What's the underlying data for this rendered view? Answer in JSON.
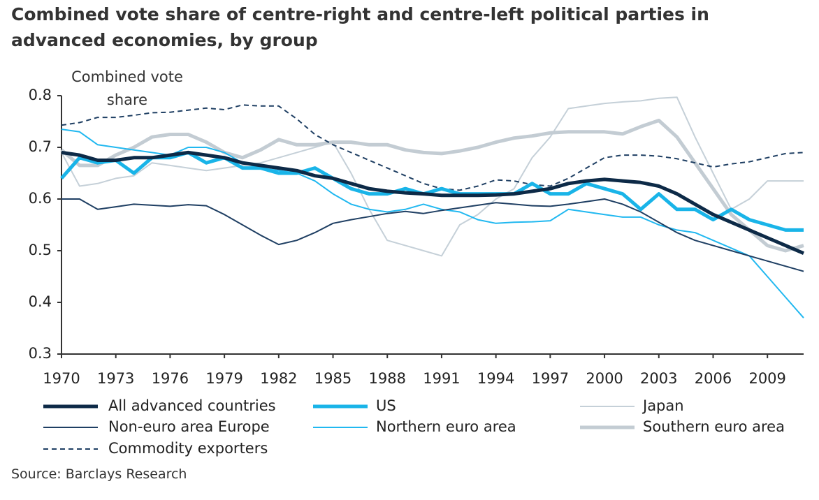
{
  "chart_data": {
    "type": "line",
    "title": "Combined vote share of centre-right and centre-left political parties in advanced economies, by group",
    "y_label": "Combined vote share",
    "source": "Source: Barclays Research",
    "x": [
      1970,
      1971,
      1972,
      1973,
      1974,
      1975,
      1976,
      1977,
      1978,
      1979,
      1980,
      1981,
      1982,
      1983,
      1984,
      1985,
      1986,
      1987,
      1988,
      1989,
      1990,
      1991,
      1992,
      1993,
      1994,
      1995,
      1996,
      1997,
      1998,
      1999,
      2000,
      2001,
      2002,
      2003,
      2004,
      2005,
      2006,
      2007,
      2008,
      2009,
      2010,
      2011
    ],
    "xlim": [
      1970,
      2011
    ],
    "xticks": [
      1970,
      1973,
      1976,
      1979,
      1982,
      1985,
      1988,
      1991,
      1994,
      1997,
      2000,
      2003,
      2006,
      2009
    ],
    "ylim": [
      0.3,
      0.8
    ],
    "yticks": [
      0.3,
      0.4,
      0.5,
      0.6,
      0.7,
      0.8
    ],
    "series": [
      {
        "name": "All advanced countries",
        "color": "#0d2a47",
        "line_width": 5,
        "dashed": false,
        "values": [
          0.69,
          0.685,
          0.675,
          0.675,
          0.68,
          0.68,
          0.685,
          0.69,
          0.685,
          0.68,
          0.67,
          0.665,
          0.66,
          0.655,
          0.645,
          0.64,
          0.63,
          0.62,
          0.615,
          0.612,
          0.61,
          0.607,
          0.607,
          0.607,
          0.608,
          0.61,
          0.615,
          0.62,
          0.63,
          0.635,
          0.638,
          0.635,
          0.632,
          0.625,
          0.61,
          0.59,
          0.57,
          0.555,
          0.54,
          0.525,
          0.51,
          0.495
        ]
      },
      {
        "name": "US",
        "color": "#19b4e8",
        "line_width": 5,
        "dashed": false,
        "values": [
          0.64,
          0.68,
          0.67,
          0.675,
          0.65,
          0.68,
          0.68,
          0.69,
          0.67,
          0.68,
          0.66,
          0.66,
          0.65,
          0.65,
          0.66,
          0.64,
          0.62,
          0.61,
          0.61,
          0.62,
          0.61,
          0.62,
          0.61,
          0.61,
          0.61,
          0.61,
          0.63,
          0.61,
          0.61,
          0.63,
          0.62,
          0.61,
          0.58,
          0.61,
          0.58,
          0.58,
          0.56,
          0.58,
          0.56,
          0.55,
          0.54,
          0.54
        ]
      },
      {
        "name": "Japan",
        "color": "#c5d0d8",
        "line_width": 2,
        "dashed": false,
        "values": [
          0.69,
          0.625,
          0.63,
          0.64,
          0.645,
          0.67,
          0.665,
          0.66,
          0.655,
          0.66,
          0.665,
          0.67,
          0.68,
          0.69,
          0.7,
          0.71,
          0.65,
          0.58,
          0.52,
          0.51,
          0.5,
          0.49,
          0.55,
          0.57,
          0.6,
          0.62,
          0.68,
          0.72,
          0.775,
          0.78,
          0.785,
          0.788,
          0.79,
          0.795,
          0.797,
          0.72,
          0.65,
          0.58,
          0.6,
          0.635,
          0.635,
          0.635
        ]
      },
      {
        "name": "Non-euro area Europe",
        "color": "#1f3f63",
        "line_width": 2,
        "dashed": false,
        "values": [
          0.6,
          0.6,
          0.58,
          0.585,
          0.59,
          0.588,
          0.586,
          0.589,
          0.587,
          0.57,
          0.55,
          0.53,
          0.512,
          0.52,
          0.535,
          0.553,
          0.56,
          0.566,
          0.572,
          0.576,
          0.572,
          0.578,
          0.583,
          0.588,
          0.593,
          0.59,
          0.587,
          0.586,
          0.59,
          0.595,
          0.6,
          0.59,
          0.575,
          0.555,
          0.535,
          0.52,
          0.51,
          0.5,
          0.49,
          0.48,
          0.47,
          0.46
        ]
      },
      {
        "name": "Northern euro area",
        "color": "#21b8f0",
        "line_width": 2,
        "dashed": false,
        "values": [
          0.735,
          0.73,
          0.705,
          0.7,
          0.695,
          0.69,
          0.685,
          0.7,
          0.7,
          0.69,
          0.67,
          0.66,
          0.655,
          0.65,
          0.635,
          0.61,
          0.59,
          0.58,
          0.575,
          0.58,
          0.59,
          0.58,
          0.575,
          0.56,
          0.553,
          0.555,
          0.556,
          0.558,
          0.58,
          0.575,
          0.57,
          0.565,
          0.565,
          0.55,
          0.54,
          0.535,
          0.52,
          0.505,
          0.49,
          0.45,
          0.41,
          0.37
        ]
      },
      {
        "name": "Southern euro area",
        "color": "#c3ccd3",
        "line_width": 5,
        "dashed": false,
        "values": [
          0.695,
          0.665,
          0.665,
          0.685,
          0.7,
          0.72,
          0.725,
          0.725,
          0.71,
          0.69,
          0.68,
          0.695,
          0.715,
          0.705,
          0.705,
          0.71,
          0.71,
          0.705,
          0.705,
          0.695,
          0.69,
          0.688,
          0.693,
          0.7,
          0.71,
          0.718,
          0.722,
          0.728,
          0.73,
          0.73,
          0.73,
          0.726,
          0.74,
          0.752,
          0.72,
          0.67,
          0.62,
          0.57,
          0.54,
          0.51,
          0.5,
          0.51
        ]
      },
      {
        "name": "Commodity exporters",
        "color": "#1f3f63",
        "line_width": 2,
        "dashed": true,
        "values": [
          0.743,
          0.748,
          0.758,
          0.758,
          0.762,
          0.767,
          0.768,
          0.772,
          0.776,
          0.773,
          0.782,
          0.78,
          0.78,
          0.755,
          0.725,
          0.705,
          0.69,
          0.675,
          0.66,
          0.645,
          0.63,
          0.62,
          0.617,
          0.625,
          0.637,
          0.635,
          0.628,
          0.625,
          0.64,
          0.66,
          0.68,
          0.685,
          0.685,
          0.683,
          0.678,
          0.67,
          0.662,
          0.668,
          0.672,
          0.68,
          0.688,
          0.69
        ]
      }
    ]
  }
}
